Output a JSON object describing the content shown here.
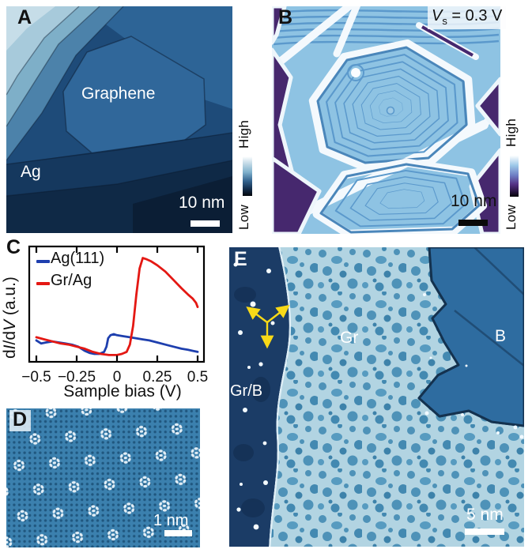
{
  "figure": {
    "panel_a": {
      "label": "A",
      "region_graphene": "Graphene",
      "region_ag": "Ag",
      "scale_bar_label": "10 nm",
      "colorbar_high": "High",
      "colorbar_low": "Low"
    },
    "panel_b": {
      "label": "B",
      "bias_symbol": "V",
      "bias_subscript": "s",
      "bias_rest": " = 0.3 V",
      "scale_bar_label": "10 nm",
      "colorbar_high": "High",
      "colorbar_low": "Low"
    },
    "panel_c": {
      "label": "C",
      "legend": {
        "ag111": "Ag(111)",
        "gr_ag": "Gr/Ag"
      },
      "ylabel_d1": "d",
      "ylabel_i": "I",
      "ylabel_d2": "/d",
      "ylabel_v": "V",
      "ylabel_units": " (a.u.)",
      "xlabel": "Sample bias (V)"
    },
    "panel_d": {
      "label": "D",
      "scale_bar_label": "1 nm"
    },
    "panel_e": {
      "label": "E",
      "region_gr_b": "Gr/B",
      "region_gr": "Gr",
      "region_b": "B",
      "scale_bar_label": "5 nm"
    }
  },
  "colors": {
    "curve_ag111": "#1e3fae",
    "curve_gr_ag": "#e41813",
    "arrow_yellow": "#f8d917",
    "colorbar_a_stops": [
      "#ffffff 0%",
      "#c2dae6 18%",
      "#7fb0cc 40%",
      "#34648f 62%",
      "#142e4c 82%",
      "#04070c 100%"
    ],
    "colorbar_b_stops": [
      "#fdfeff 0%",
      "#9cc8e8 24%",
      "#6e7ec4 48%",
      "#543184 70%",
      "#2c1746 86%",
      "#050208 100%"
    ]
  },
  "chart_data": {
    "type": "line",
    "title": "",
    "xlabel": "Sample bias (V)",
    "ylabel": "dI/dV (a.u.)",
    "xlim": [
      -0.5,
      0.5
    ],
    "ylim": [
      0,
      1
    ],
    "xticks": [
      -0.5,
      -0.25,
      0,
      0.25,
      0.5
    ],
    "xtick_labels": [
      "−0.5",
      "−0.25",
      "0",
      "0.25",
      "0.5"
    ],
    "grid": false,
    "legend_position": "upper-left",
    "series": [
      {
        "name": "Ag(111)",
        "color": "#1e3fae",
        "x": [
          -0.5,
          -0.47,
          -0.44,
          -0.4,
          -0.36,
          -0.32,
          -0.28,
          -0.24,
          -0.2,
          -0.17,
          -0.14,
          -0.11,
          -0.08,
          -0.065,
          -0.055,
          -0.04,
          -0.02,
          0.0,
          0.04,
          0.08,
          0.12,
          0.16,
          0.2,
          0.25,
          0.3,
          0.35,
          0.4,
          0.44,
          0.47,
          0.5
        ],
        "y": [
          0.16,
          0.13,
          0.14,
          0.15,
          0.14,
          0.13,
          0.12,
          0.1,
          0.06,
          0.04,
          0.03,
          0.03,
          0.05,
          0.1,
          0.18,
          0.21,
          0.22,
          0.21,
          0.2,
          0.19,
          0.18,
          0.17,
          0.16,
          0.14,
          0.12,
          0.1,
          0.08,
          0.07,
          0.06,
          0.05
        ]
      },
      {
        "name": "Gr/Ag",
        "color": "#e41813",
        "x": [
          -0.5,
          -0.45,
          -0.4,
          -0.35,
          -0.3,
          -0.25,
          -0.2,
          -0.15,
          -0.1,
          -0.05,
          0.0,
          0.03,
          0.06,
          0.08,
          0.1,
          0.12,
          0.14,
          0.16,
          0.18,
          0.21,
          0.25,
          0.3,
          0.35,
          0.4,
          0.44,
          0.47,
          0.49,
          0.5
        ],
        "y": [
          0.19,
          0.17,
          0.15,
          0.13,
          0.12,
          0.1,
          0.08,
          0.05,
          0.03,
          0.02,
          0.02,
          0.03,
          0.05,
          0.12,
          0.3,
          0.6,
          0.85,
          0.95,
          0.94,
          0.92,
          0.88,
          0.82,
          0.74,
          0.66,
          0.6,
          0.56,
          0.52,
          0.48
        ]
      }
    ]
  }
}
